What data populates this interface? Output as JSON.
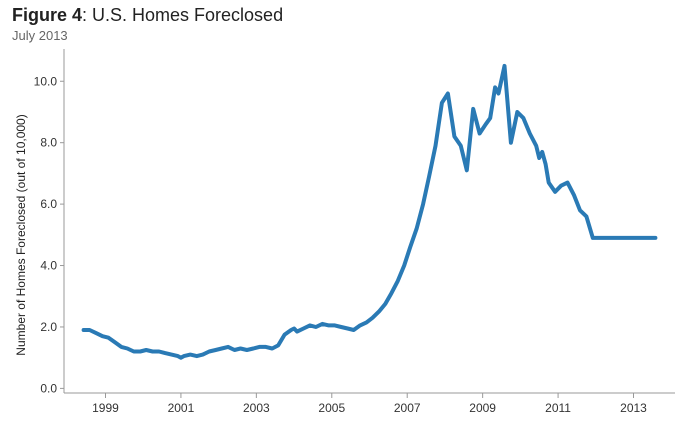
{
  "header": {
    "figure_label": "Figure 4",
    "title_rest": ": U.S. Homes Foreclosed",
    "subtitle": "July 2013"
  },
  "colors": {
    "line": "#2a7ab5",
    "axis": "#888888",
    "text": "#333333"
  },
  "chart_data": {
    "type": "line",
    "title": "Figure 4: U.S. Homes Foreclosed",
    "subtitle": "July 2013",
    "xlabel": "",
    "ylabel": "Number of Homes Foreclosed (out of 10,000)",
    "xlim": [
      1997.9,
      2014.1
    ],
    "ylim": [
      -0.15,
      11.05
    ],
    "grid": false,
    "x_ticks": [
      1999,
      2001,
      2003,
      2005,
      2007,
      2009,
      2011,
      2013
    ],
    "x_tick_labels": [
      "1999",
      "2001",
      "2003",
      "2005",
      "2007",
      "2009",
      "2011",
      "2013"
    ],
    "y_ticks": [
      0,
      2,
      4,
      6,
      8,
      10
    ],
    "y_tick_labels": [
      "0.0",
      "2.0",
      "4.0",
      "6.0",
      "8.0",
      "10.0"
    ],
    "series": [
      {
        "x": [
          1998.42,
          1998.58,
          1998.75,
          1998.92,
          1999.08,
          1999.25,
          1999.42,
          1999.58,
          1999.75,
          1999.92,
          2000.08,
          2000.25,
          2000.42,
          2000.58,
          2000.75,
          2000.92,
          2001.0,
          2001.08,
          2001.25,
          2001.42,
          2001.58,
          2001.75,
          2001.92,
          2002.08,
          2002.25,
          2002.42,
          2002.58,
          2002.75,
          2002.92,
          2003.08,
          2003.25,
          2003.42,
          2003.58,
          2003.75,
          2003.92,
          2004.0,
          2004.08,
          2004.25,
          2004.42,
          2004.58,
          2004.75,
          2004.92,
          2005.08,
          2005.25,
          2005.42,
          2005.58,
          2005.75,
          2005.92,
          2006.08,
          2006.25,
          2006.42,
          2006.58,
          2006.75,
          2006.92,
          2007.08,
          2007.25,
          2007.42,
          2007.58,
          2007.75,
          2007.92,
          2008.08,
          2008.25,
          2008.42,
          2008.58,
          2008.75,
          2008.92,
          2009.08,
          2009.2,
          2009.33,
          2009.42,
          2009.58,
          2009.75,
          2009.92,
          2010.08,
          2010.25,
          2010.42,
          2010.5,
          2010.58,
          2010.67,
          2010.75,
          2010.92,
          2011.08,
          2011.25,
          2011.42,
          2011.58,
          2011.75,
          2011.92,
          2012.08,
          2012.25,
          2012.42,
          2012.58,
          2012.75,
          2012.92,
          2013.08,
          2013.25,
          2013.42,
          2013.58
        ],
        "values": [
          1.9,
          1.9,
          1.8,
          1.7,
          1.65,
          1.5,
          1.35,
          1.3,
          1.2,
          1.2,
          1.25,
          1.2,
          1.2,
          1.15,
          1.1,
          1.05,
          1.0,
          1.05,
          1.1,
          1.05,
          1.1,
          1.2,
          1.25,
          1.3,
          1.35,
          1.25,
          1.3,
          1.25,
          1.3,
          1.35,
          1.35,
          1.3,
          1.4,
          1.75,
          1.9,
          1.95,
          1.85,
          1.95,
          2.05,
          2.0,
          2.1,
          2.05,
          2.05,
          2.0,
          1.95,
          1.9,
          2.05,
          2.15,
          2.3,
          2.5,
          2.75,
          3.1,
          3.5,
          4.0,
          4.6,
          5.2,
          6.0,
          6.9,
          7.9,
          9.3,
          9.6,
          8.2,
          7.9,
          7.1,
          9.1,
          8.3,
          8.6,
          8.8,
          9.8,
          9.6,
          10.5,
          8.0,
          9.0,
          8.8,
          8.3,
          7.9,
          7.5,
          7.7,
          7.3,
          6.7,
          6.4,
          6.6,
          6.7,
          6.3,
          5.8,
          5.6,
          4.9,
          4.9,
          4.9,
          4.9,
          4.9,
          4.9,
          4.9,
          4.9,
          4.9,
          4.9,
          4.9
        ]
      }
    ]
  }
}
